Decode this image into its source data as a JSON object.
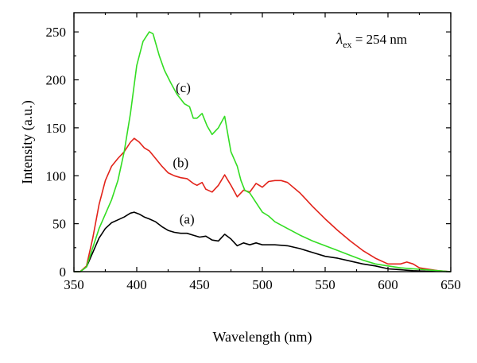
{
  "chart_data": {
    "type": "line",
    "xlabel": "Wavelength (nm)",
    "ylabel": "Intensity (a.u.)",
    "xlim": [
      350,
      650
    ],
    "ylim": [
      0,
      270
    ],
    "x_ticks": [
      350,
      400,
      450,
      500,
      550,
      600,
      650
    ],
    "y_ticks": [
      0,
      50,
      100,
      150,
      200,
      250
    ],
    "annotation": {
      "lambda": "λ",
      "subscript": "ex",
      "rest": " = 254 nm"
    },
    "series": [
      {
        "name": "(a)",
        "color": "#000000",
        "label_at": [
          440,
          50
        ],
        "x": [
          350,
          355,
          360,
          365,
          370,
          375,
          380,
          385,
          390,
          395,
          398,
          402,
          406,
          410,
          415,
          420,
          425,
          430,
          435,
          440,
          445,
          450,
          455,
          460,
          465,
          470,
          475,
          480,
          485,
          490,
          495,
          500,
          510,
          520,
          530,
          540,
          550,
          560,
          570,
          580,
          590,
          600,
          610,
          620,
          630,
          640,
          650
        ],
        "y": [
          0,
          0,
          5,
          20,
          35,
          45,
          51,
          54,
          57,
          61,
          62,
          60,
          57,
          55,
          52,
          47,
          43,
          41,
          40,
          40,
          38,
          36,
          37,
          33,
          32,
          39,
          34,
          27,
          30,
          28,
          30,
          28,
          28,
          27,
          24,
          20,
          16,
          14,
          11,
          8,
          6,
          3,
          2,
          1,
          0.5,
          0.3,
          0
        ]
      },
      {
        "name": "(b)",
        "color": "#e2231a",
        "label_at": [
          435,
          109
        ],
        "x": [
          350,
          355,
          360,
          365,
          370,
          375,
          380,
          385,
          390,
          395,
          398,
          402,
          406,
          410,
          415,
          420,
          425,
          430,
          435,
          440,
          445,
          448,
          452,
          455,
          460,
          465,
          470,
          475,
          480,
          485,
          490,
          495,
          500,
          505,
          510,
          515,
          520,
          530,
          540,
          550,
          560,
          570,
          580,
          590,
          600,
          610,
          615,
          620,
          625,
          630,
          640,
          650
        ],
        "y": [
          0,
          0,
          6,
          35,
          70,
          95,
          110,
          118,
          125,
          135,
          139,
          135,
          129,
          126,
          118,
          110,
          103,
          100,
          98,
          97,
          92,
          90,
          93,
          86,
          83,
          90,
          101,
          90,
          78,
          85,
          83,
          92,
          88,
          94,
          95,
          95,
          93,
          82,
          68,
          55,
          43,
          32,
          22,
          14,
          8,
          8,
          10,
          8,
          4,
          3,
          1,
          0
        ]
      },
      {
        "name": "(c)",
        "color": "#33dd22",
        "label_at": [
          437,
          187
        ],
        "x": [
          350,
          355,
          360,
          365,
          370,
          375,
          380,
          385,
          390,
          395,
          400,
          405,
          410,
          413,
          418,
          422,
          427,
          432,
          438,
          442,
          445,
          448,
          452,
          456,
          460,
          465,
          470,
          475,
          480,
          483,
          486,
          490,
          495,
          500,
          505,
          510,
          520,
          530,
          540,
          550,
          560,
          570,
          580,
          590,
          600,
          610,
          620,
          630,
          640,
          650
        ],
        "y": [
          0,
          0,
          5,
          25,
          45,
          60,
          75,
          95,
          125,
          165,
          215,
          240,
          250,
          248,
          225,
          210,
          197,
          185,
          175,
          172,
          160,
          160,
          165,
          152,
          143,
          150,
          162,
          125,
          110,
          95,
          85,
          82,
          72,
          62,
          58,
          52,
          45,
          38,
          32,
          27,
          22,
          17,
          12,
          8,
          6,
          4,
          3,
          2,
          1,
          0
        ]
      }
    ]
  }
}
